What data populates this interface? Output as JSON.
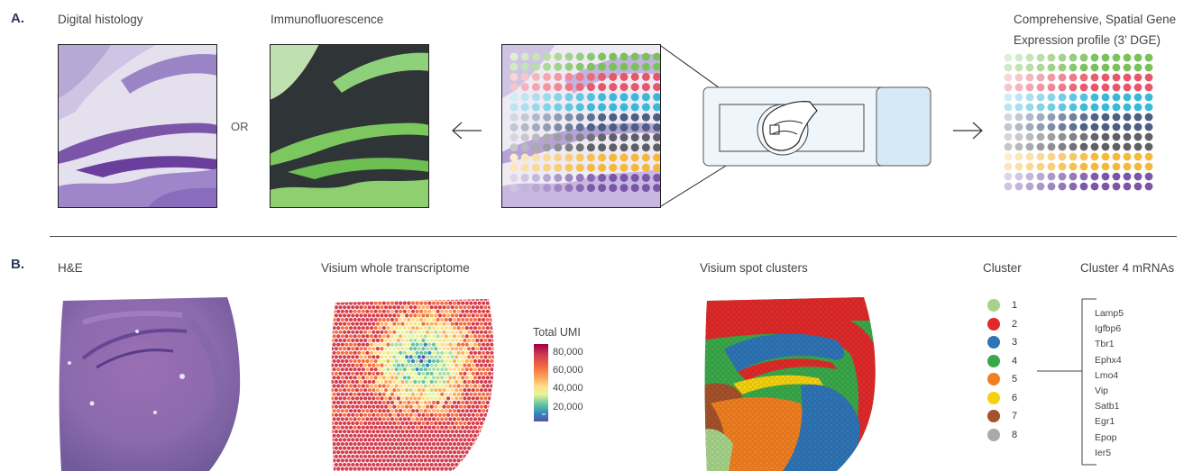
{
  "panel_a": {
    "letter": "A.",
    "histology_title": "Digital histology",
    "immuno_title": "Immunofluorescence",
    "or_label": "OR",
    "profile_title_line1": "Comprehensive, Spatial Gene",
    "profile_title_line2": "Expression profile (3’ DGE)",
    "row_colors": [
      "#7cc05a",
      "#e8566a",
      "#3ab8d8",
      "#4a5f82",
      "#5f6066",
      "#f5b83a",
      "#7a55a8"
    ]
  },
  "panel_b": {
    "letter": "B.",
    "he_title": "H&E",
    "visium_title": "Visium whole transcriptome",
    "clusters_title": "Visium spot clusters",
    "colorbar_title": "Total UMI",
    "colorbar_ticks": [
      "80,000",
      "60,000",
      "40,000",
      "20,000"
    ],
    "cluster_header": "Cluster",
    "mrna_header": "Cluster 4 mRNAs",
    "clusters": [
      {
        "label": "1",
        "color": "#a6d38a"
      },
      {
        "label": "2",
        "color": "#e02a2a"
      },
      {
        "label": "3",
        "color": "#2f74b5"
      },
      {
        "label": "4",
        "color": "#3aa84a"
      },
      {
        "label": "5",
        "color": "#f07f22"
      },
      {
        "label": "6",
        "color": "#f5d10e"
      },
      {
        "label": "7",
        "color": "#a5522a"
      },
      {
        "label": "8",
        "color": "#a9a9a9"
      }
    ],
    "mrnas": [
      "Lamp5",
      "Igfbp6",
      "Tbr1",
      "Ephx4",
      "Lmo4",
      "Vip",
      "Satb1",
      "Egr1",
      "Epop",
      "Ier5"
    ]
  }
}
